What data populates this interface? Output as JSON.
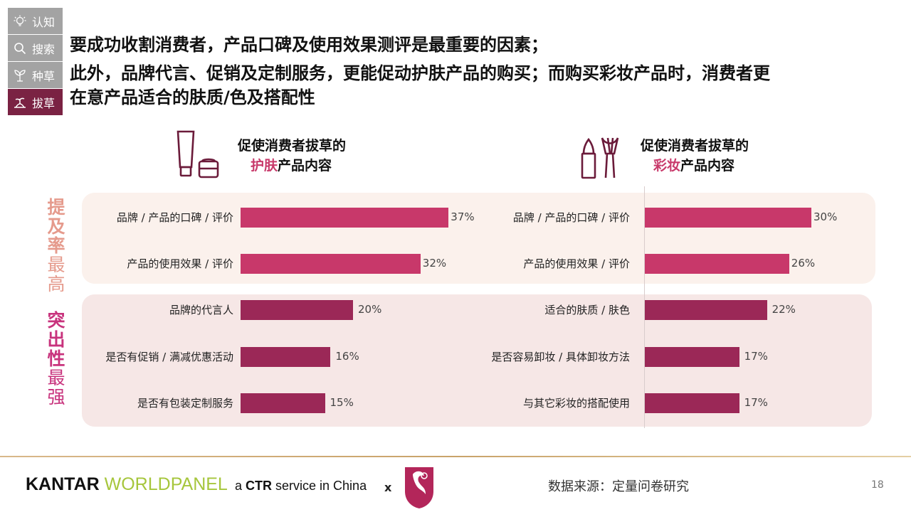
{
  "nav": {
    "items": [
      {
        "label": "认知",
        "icon": "lightbulb-icon",
        "active": false
      },
      {
        "label": "搜索",
        "icon": "search-icon",
        "active": false
      },
      {
        "label": "种草",
        "icon": "sprout-icon",
        "active": false
      },
      {
        "label": "拔草",
        "icon": "harvest-icon",
        "active": true
      }
    ]
  },
  "headline": {
    "line1": "要成功收割消费者，产品口碑及使用效果测评是最重要的因素；",
    "line2": "此外，品牌代言、促销及定制服务，更能促动护肤产品的购买；而购买彩妆产品时，消费者更",
    "line3": "在意产品适合的肤质/色及搭配性"
  },
  "sections": {
    "skincare": {
      "title_prefix": "促使消费者拔草的",
      "title_highlight": "护肤",
      "title_suffix": "产品内容",
      "icon": "skincare-tube-icon"
    },
    "makeup": {
      "title_prefix": "促使消费者拔草的",
      "title_highlight": "彩妆",
      "title_suffix": "产品内容",
      "icon": "lipstick-brush-icon"
    }
  },
  "side_labels": {
    "top": {
      "bold": [
        "提",
        "及",
        "率"
      ],
      "light": [
        "最",
        "高"
      ]
    },
    "bottom": {
      "bold": [
        "突",
        "出",
        "性"
      ],
      "light": [
        "最",
        "强"
      ]
    }
  },
  "colors": {
    "bar_top": "#c8386a",
    "bar_bottom": "#9b2857",
    "highlight": "#c83a6b",
    "active_nav": "#7a2243"
  },
  "chart_data": [
    {
      "type": "bar",
      "orientation": "horizontal",
      "title": "促使消费者拔草的护肤产品内容",
      "categories": [
        "品牌 / 产品的口碑 / 评价",
        "产品的使用效果 / 评价",
        "品牌的代言人",
        "是否有促销 / 满减优惠活动",
        "是否有包装定制服务"
      ],
      "values": [
        37,
        32,
        20,
        16,
        15
      ],
      "value_labels": [
        "37%",
        "32%",
        "20%",
        "16%",
        "15%"
      ],
      "unit": "%"
    },
    {
      "type": "bar",
      "orientation": "horizontal",
      "title": "促使消费者拔草的彩妆产品内容",
      "categories": [
        "品牌 / 产品的口碑 / 评价",
        "产品的使用效果 / 评价",
        "适合的肤质 / 肤色",
        "是否容易卸妆 / 具体卸妆方法",
        "与其它彩妆的搭配使用"
      ],
      "values": [
        30,
        26,
        22,
        17,
        17
      ],
      "value_labels": [
        "30%",
        "26%",
        "22%",
        "17%",
        "17%"
      ],
      "unit": "%"
    }
  ],
  "footer": {
    "brand_a": "KANTAR",
    "brand_b": "WORLDPANEL",
    "ctr_a": "a ",
    "ctr_b": "CTR",
    "ctr_c": " service in China",
    "times": "x",
    "source": "数据来源：定量问卷研究",
    "page": "18"
  }
}
